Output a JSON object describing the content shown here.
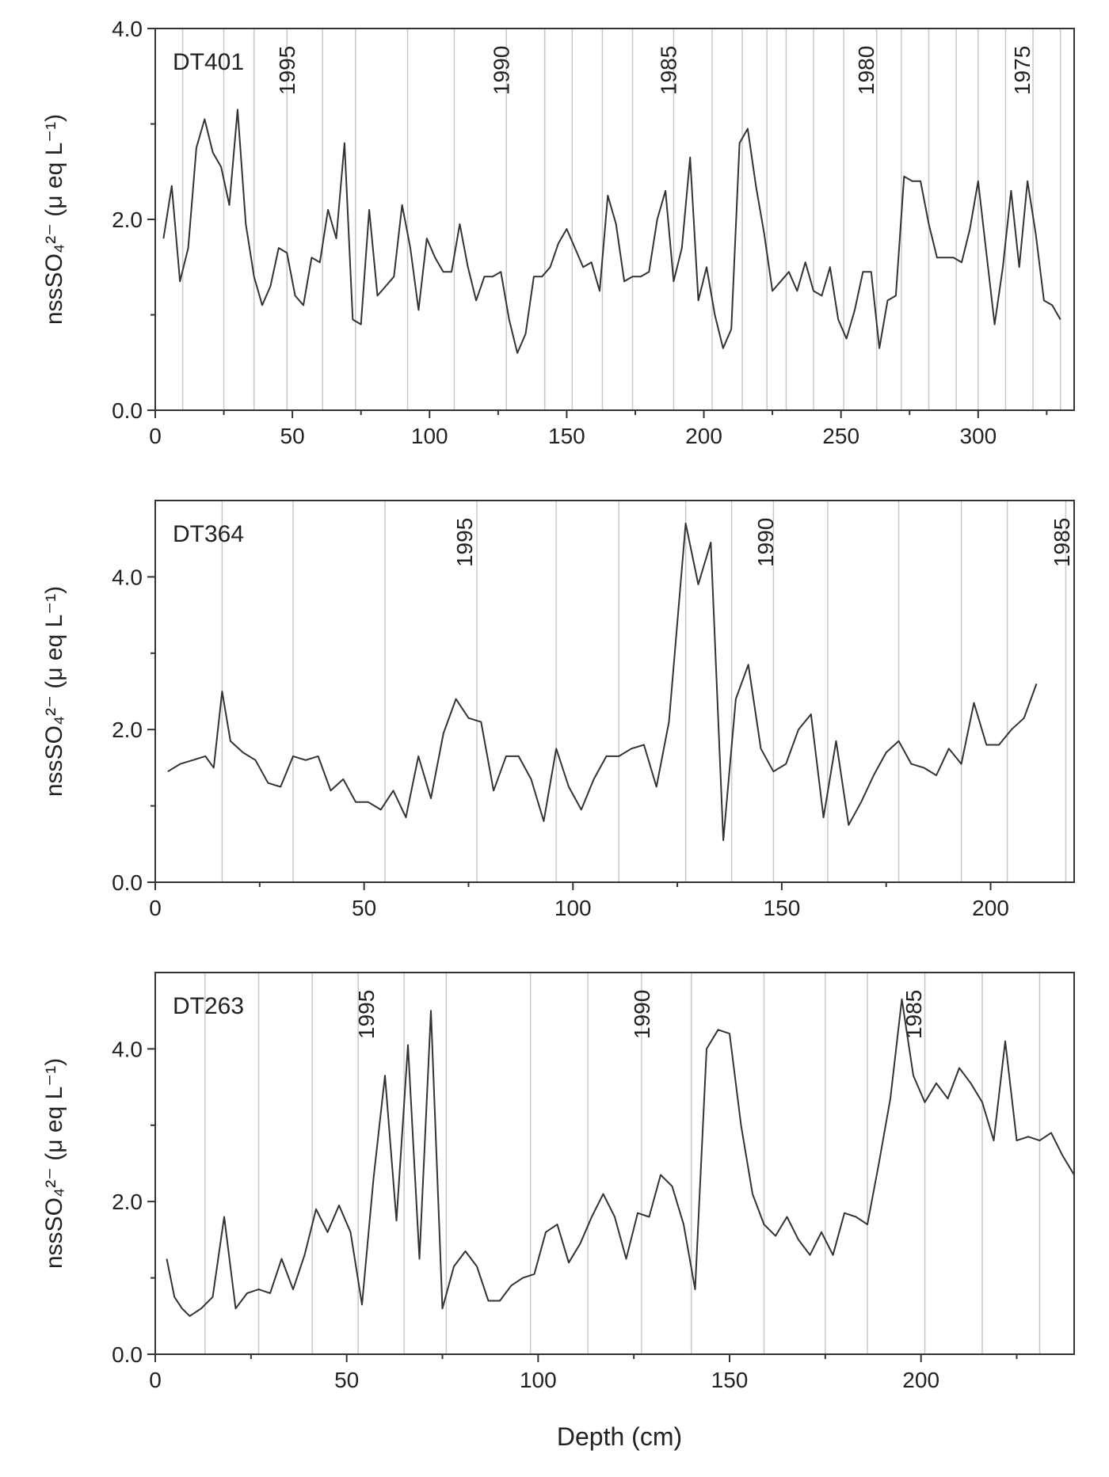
{
  "xlabel": "Depth (cm)",
  "chart_data": [
    {
      "type": "line",
      "panel_label": "DT401",
      "ylabel": "nssSO₄²⁻ (μ eq L⁻¹)",
      "xlim": [
        0,
        335
      ],
      "ylim": [
        0,
        4.0
      ],
      "xticks": [
        0,
        50,
        100,
        150,
        200,
        250,
        300
      ],
      "yticks": [
        0.0,
        2.0,
        4.0
      ],
      "ytick_labels": [
        "0.0",
        "2.0",
        "4.0"
      ],
      "vlines": [
        10,
        25,
        36,
        48,
        61,
        73,
        92,
        109,
        128,
        142,
        152,
        163,
        174,
        189,
        203,
        214,
        223,
        230,
        240,
        251,
        263,
        272,
        282,
        292,
        300,
        310,
        320,
        330
      ],
      "year_markers": [
        {
          "x": 48,
          "label": "1995"
        },
        {
          "x": 126,
          "label": "1990"
        },
        {
          "x": 187,
          "label": "1985"
        },
        {
          "x": 259,
          "label": "1980"
        },
        {
          "x": 316,
          "label": "1975"
        }
      ],
      "series": [
        {
          "x": [
            3,
            6,
            9,
            12,
            15,
            18,
            21,
            24,
            27,
            30,
            33,
            36,
            39,
            42,
            45,
            48,
            51,
            54,
            57,
            60,
            63,
            66,
            69,
            72,
            75,
            78,
            81,
            84,
            87,
            90,
            93,
            96,
            99,
            102,
            105,
            108,
            111,
            114,
            117,
            120,
            123,
            126,
            129,
            132,
            135,
            138,
            141,
            144,
            147,
            150,
            153,
            156,
            159,
            162,
            165,
            168,
            171,
            174,
            177,
            180,
            183,
            186,
            189,
            192,
            195,
            198,
            201,
            204,
            207,
            210,
            213,
            216,
            219,
            222,
            225,
            228,
            231,
            234,
            237,
            240,
            243,
            246,
            249,
            252,
            255,
            258,
            261,
            264,
            267,
            270,
            273,
            276,
            279,
            282,
            285,
            288,
            291,
            294,
            297,
            300,
            303,
            306,
            309,
            312,
            315,
            318,
            321,
            324,
            327,
            330
          ],
          "y": [
            1.8,
            2.35,
            1.35,
            1.7,
            2.75,
            3.05,
            2.7,
            2.55,
            2.15,
            3.15,
            1.95,
            1.4,
            1.1,
            1.3,
            1.7,
            1.65,
            1.2,
            1.1,
            1.6,
            1.55,
            2.1,
            1.8,
            2.8,
            0.95,
            0.9,
            2.1,
            1.2,
            1.3,
            1.4,
            2.15,
            1.7,
            1.05,
            1.8,
            1.6,
            1.45,
            1.45,
            1.95,
            1.5,
            1.15,
            1.4,
            1.4,
            1.45,
            0.95,
            0.6,
            0.8,
            1.4,
            1.4,
            1.5,
            1.75,
            1.9,
            1.7,
            1.5,
            1.55,
            1.25,
            2.25,
            1.95,
            1.35,
            1.4,
            1.4,
            1.45,
            2.0,
            2.3,
            1.35,
            1.7,
            2.65,
            1.15,
            1.5,
            1.0,
            0.65,
            0.85,
            2.8,
            2.95,
            2.35,
            1.85,
            1.25,
            1.35,
            1.45,
            1.25,
            1.55,
            1.25,
            1.2,
            1.5,
            0.95,
            0.75,
            1.05,
            1.45,
            1.45,
            0.65,
            1.15,
            1.2,
            2.45,
            2.4,
            2.4,
            1.95,
            1.6,
            1.6,
            1.6,
            1.55,
            1.9,
            2.4,
            1.65,
            0.9,
            1.5,
            2.3,
            1.5,
            2.4,
            1.85,
            1.15,
            1.1,
            0.95
          ]
        }
      ]
    },
    {
      "type": "line",
      "panel_label": "DT364",
      "ylabel": "nssSO₄²⁻ (μ eq L⁻¹)",
      "xlim": [
        0,
        220
      ],
      "ylim": [
        0,
        5.0
      ],
      "xticks": [
        0,
        50,
        100,
        150,
        200
      ],
      "yticks": [
        0.0,
        2.0,
        4.0
      ],
      "ytick_labels": [
        "0.0",
        "2.0",
        "4.0"
      ],
      "vlines": [
        16,
        33,
        55,
        77,
        96,
        111,
        127,
        138,
        148,
        161,
        178,
        193,
        204,
        218
      ],
      "year_markers": [
        {
          "x": 74,
          "label": "1995"
        },
        {
          "x": 146,
          "label": "1990"
        },
        {
          "x": 217,
          "label": "1985"
        }
      ],
      "series": [
        {
          "x": [
            3,
            6,
            9,
            12,
            14,
            16,
            18,
            21,
            24,
            27,
            30,
            33,
            36,
            39,
            42,
            45,
            48,
            51,
            54,
            57,
            60,
            63,
            66,
            69,
            72,
            75,
            78,
            81,
            84,
            87,
            90,
            93,
            96,
            99,
            102,
            105,
            108,
            111,
            114,
            117,
            120,
            123,
            127,
            130,
            133,
            136,
            139,
            142,
            145,
            148,
            151,
            154,
            157,
            160,
            163,
            166,
            169,
            172,
            175,
            178,
            181,
            184,
            187,
            190,
            193,
            196,
            199,
            202,
            205,
            208,
            211
          ],
          "y": [
            1.45,
            1.55,
            1.6,
            1.65,
            1.5,
            2.5,
            1.85,
            1.7,
            1.6,
            1.3,
            1.25,
            1.65,
            1.6,
            1.65,
            1.2,
            1.35,
            1.05,
            1.05,
            0.95,
            1.2,
            0.85,
            1.65,
            1.1,
            1.95,
            2.4,
            2.15,
            2.1,
            1.2,
            1.65,
            1.65,
            1.35,
            0.8,
            1.75,
            1.25,
            0.95,
            1.35,
            1.65,
            1.65,
            1.75,
            1.8,
            1.25,
            2.1,
            4.7,
            3.9,
            4.45,
            0.55,
            2.4,
            2.85,
            1.75,
            1.45,
            1.55,
            2.0,
            2.2,
            0.85,
            1.85,
            0.75,
            1.05,
            1.4,
            1.7,
            1.85,
            1.55,
            1.5,
            1.4,
            1.75,
            1.55,
            2.35,
            1.8,
            1.8,
            2.0,
            2.15,
            2.6
          ]
        }
      ]
    },
    {
      "type": "line",
      "panel_label": "DT263",
      "ylabel": "nssSO₄²⁻ (μ eq L⁻¹)",
      "xlim": [
        0,
        240
      ],
      "ylim": [
        0,
        5.0
      ],
      "xticks": [
        0,
        50,
        100,
        150,
        200
      ],
      "yticks": [
        0.0,
        2.0,
        4.0
      ],
      "ytick_labels": [
        "0.0",
        "2.0",
        "4.0"
      ],
      "vlines": [
        13,
        27,
        41,
        53,
        65,
        76,
        98,
        113,
        127,
        140,
        159,
        175,
        186,
        201,
        216,
        231
      ],
      "year_markers": [
        {
          "x": 55,
          "label": "1995"
        },
        {
          "x": 127,
          "label": "1990"
        },
        {
          "x": 198,
          "label": "1985"
        }
      ],
      "series": [
        {
          "x": [
            3,
            5,
            7,
            9,
            12,
            15,
            18,
            21,
            24,
            27,
            30,
            33,
            36,
            39,
            42,
            45,
            48,
            51,
            54,
            57,
            60,
            63,
            66,
            69,
            72,
            75,
            78,
            81,
            84,
            87,
            90,
            93,
            96,
            99,
            102,
            105,
            108,
            111,
            114,
            117,
            120,
            123,
            126,
            129,
            132,
            135,
            138,
            141,
            144,
            147,
            150,
            153,
            156,
            159,
            162,
            165,
            168,
            171,
            174,
            177,
            180,
            183,
            186,
            189,
            192,
            195,
            198,
            201,
            204,
            207,
            210,
            213,
            216,
            219,
            222,
            225,
            228,
            231,
            234,
            237,
            240
          ],
          "y": [
            1.25,
            0.75,
            0.6,
            0.5,
            0.6,
            0.75,
            1.8,
            0.6,
            0.8,
            0.85,
            0.8,
            1.25,
            0.85,
            1.3,
            1.9,
            1.6,
            1.95,
            1.6,
            0.65,
            2.3,
            3.65,
            1.75,
            4.05,
            1.25,
            4.5,
            0.6,
            1.15,
            1.35,
            1.15,
            0.7,
            0.7,
            0.9,
            1.0,
            1.05,
            1.6,
            1.7,
            1.2,
            1.45,
            1.8,
            2.1,
            1.8,
            1.25,
            1.85,
            1.8,
            2.35,
            2.2,
            1.7,
            0.85,
            4.0,
            4.25,
            4.2,
            3.0,
            2.1,
            1.7,
            1.55,
            1.8,
            1.5,
            1.3,
            1.6,
            1.3,
            1.85,
            1.8,
            1.7,
            2.5,
            3.35,
            4.65,
            3.65,
            3.3,
            3.55,
            3.35,
            3.75,
            3.55,
            3.3,
            2.8,
            4.1,
            2.8,
            2.85,
            2.8,
            2.9,
            2.6,
            2.35
          ]
        }
      ]
    }
  ]
}
